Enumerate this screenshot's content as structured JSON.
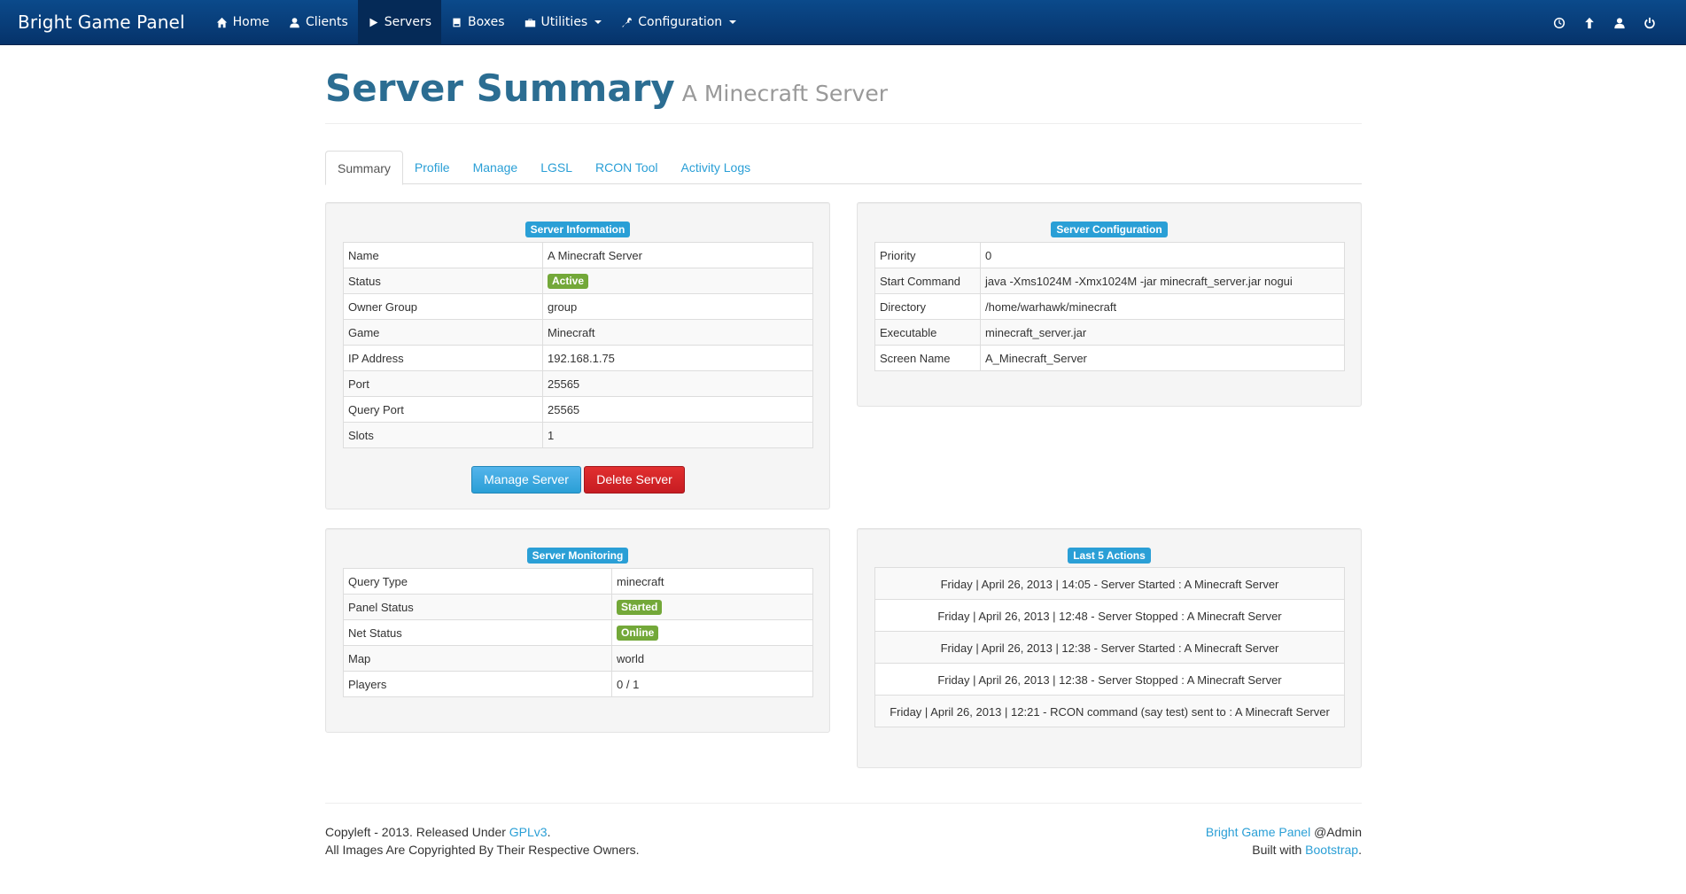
{
  "nav": {
    "brand": "Bright Game Panel",
    "items": [
      {
        "label": "Home",
        "icon": "home-icon"
      },
      {
        "label": "Clients",
        "icon": "user-icon"
      },
      {
        "label": "Servers",
        "icon": "play-icon"
      },
      {
        "label": "Boxes",
        "icon": "hdd-icon"
      },
      {
        "label": "Utilities",
        "icon": "briefcase-icon"
      },
      {
        "label": "Configuration",
        "icon": "wrench-icon"
      }
    ],
    "active": "Servers",
    "right_icons": [
      "clock-icon",
      "upload-icon",
      "user-icon",
      "power-icon"
    ]
  },
  "header": {
    "title": "Server Summary",
    "subtitle": "A Minecraft Server"
  },
  "tabs": [
    "Summary",
    "Profile",
    "Manage",
    "LGSL",
    "RCON Tool",
    "Activity Logs"
  ],
  "server_info": {
    "title": "Server Information",
    "rows": [
      {
        "label": "Name",
        "value": "A Minecraft Server"
      },
      {
        "label": "Status",
        "value": "Active",
        "badge": true
      },
      {
        "label": "Owner Group",
        "value": "group"
      },
      {
        "label": "Game",
        "value": "Minecraft"
      },
      {
        "label": "IP Address",
        "value": "192.168.1.75"
      },
      {
        "label": "Port",
        "value": "25565"
      },
      {
        "label": "Query Port",
        "value": "25565"
      },
      {
        "label": "Slots",
        "value": "1"
      }
    ],
    "manage_button": "Manage Server",
    "delete_button": "Delete Server"
  },
  "server_config": {
    "title": "Server Configuration",
    "rows": [
      {
        "label": "Priority",
        "value": "0"
      },
      {
        "label": "Start Command",
        "value": "java -Xms1024M -Xmx1024M -jar minecraft_server.jar nogui"
      },
      {
        "label": "Directory",
        "value": "/home/warhawk/minecraft"
      },
      {
        "label": "Executable",
        "value": "minecraft_server.jar"
      },
      {
        "label": "Screen Name",
        "value": "A_Minecraft_Server"
      }
    ]
  },
  "server_monitoring": {
    "title": "Server Monitoring",
    "rows": [
      {
        "label": "Query Type",
        "value": "minecraft"
      },
      {
        "label": "Panel Status",
        "value": "Started",
        "badge": true
      },
      {
        "label": "Net Status",
        "value": "Online",
        "badge": true
      },
      {
        "label": "Map",
        "value": "world"
      },
      {
        "label": "Players",
        "value": "0 / 1"
      }
    ]
  },
  "last_actions": {
    "title": "Last 5 Actions",
    "items": [
      "Friday | April 26, 2013 | 14:05 - Server Started : A Minecraft Server",
      "Friday | April 26, 2013 | 12:48 - Server Stopped : A Minecraft Server",
      "Friday | April 26, 2013 | 12:38 - Server Started : A Minecraft Server",
      "Friday | April 26, 2013 | 12:38 - Server Stopped : A Minecraft Server",
      "Friday | April 26, 2013 | 12:21 - RCON command (say test) sent to : A Minecraft Server"
    ]
  },
  "footer": {
    "left_line1_prefix": "Copyleft - 2013. Released Under ",
    "left_line1_link": "GPLv3",
    "left_line1_suffix": ".",
    "left_line2": "All Images Are Copyrighted By Their Respective Owners.",
    "right_line1_link": "Bright Game Panel",
    "right_line1_suffix": " @Admin",
    "right_line2_prefix": "Built with ",
    "right_line2_link": "Bootstrap",
    "right_line2_suffix": "."
  },
  "colors": {
    "navbar": "#0b4a8b",
    "accent": "#2a9fd6",
    "success": "#73a839",
    "danger": "#c71c22",
    "title": "#2b6d92"
  }
}
